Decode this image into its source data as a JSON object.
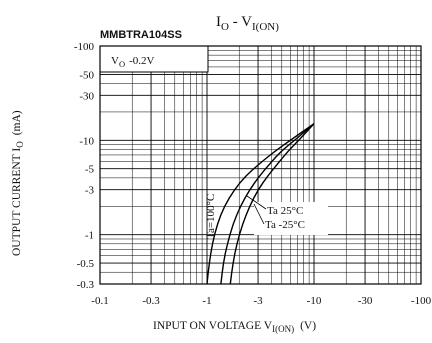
{
  "chart": {
    "part_number": "MMBTRA104SS",
    "title_main": "I",
    "title_sub1": "O",
    "title_mid": " - V",
    "title_sub2": "I(ON)",
    "condition_main": "V",
    "condition_sub": "O",
    "condition_value": "-0.2V",
    "ylabel_main": "OUTPUT CURRENT I",
    "ylabel_sub": "O",
    "ylabel_unit": "(mA)",
    "xlabel_main": "INPUT ON VOLTAGE V",
    "xlabel_sub": "I(ON)",
    "xlabel_unit": "(V)"
  },
  "chart_data": {
    "type": "line",
    "title": "I_O - V_I(ON)",
    "subtitle": "MMBTRA104SS",
    "xlabel": "INPUT ON VOLTAGE V_I(ON) (V)",
    "ylabel": "OUTPUT CURRENT I_O (mA)",
    "x_scale": "log",
    "y_scale": "log",
    "x_reversed_negative": true,
    "y_reversed_negative": true,
    "xlim": [
      -0.1,
      -100
    ],
    "ylim": [
      -0.3,
      -100
    ],
    "x_ticks": [
      -0.1,
      -0.3,
      -1,
      -3,
      -10,
      -30,
      -100
    ],
    "x_tick_labels": [
      "-0.1",
      "-0.3",
      "-1",
      "-3",
      "-10",
      "-30",
      "-100"
    ],
    "y_ticks": [
      -100,
      -50,
      -30,
      -10,
      -5,
      -3,
      -1,
      -0.5,
      -0.3
    ],
    "y_tick_labels": [
      "-100",
      "-50",
      "-30",
      "-10",
      "-5",
      "-3",
      "-1",
      "-0.5",
      "-0.3"
    ],
    "grid": true,
    "condition": "V_O -0.2V",
    "series": [
      {
        "name": "Ta=100°C",
        "x": [
          -1.0,
          -1.05,
          -1.12,
          -1.25,
          -1.45,
          -1.8,
          -2.3,
          -3.0,
          -4.2,
          -6.0,
          -10.0
        ],
        "y": [
          -0.3,
          -0.5,
          -0.8,
          -1.3,
          -2.0,
          -3.0,
          -4.2,
          -5.5,
          -7.5,
          -10.0,
          -15.0
        ]
      },
      {
        "name": "Ta 25°C",
        "x": [
          -1.35,
          -1.42,
          -1.55,
          -1.75,
          -2.05,
          -2.5,
          -3.1,
          -3.9,
          -5.0,
          -6.6,
          -10.0
        ],
        "y": [
          -0.3,
          -0.5,
          -0.8,
          -1.3,
          -2.0,
          -3.0,
          -4.2,
          -5.7,
          -7.8,
          -10.0,
          -15.0
        ]
      },
      {
        "name": "Ta -25°C",
        "x": [
          -1.65,
          -1.75,
          -1.9,
          -2.15,
          -2.5,
          -3.0,
          -3.7,
          -4.6,
          -5.8,
          -7.2,
          -10.0
        ],
        "y": [
          -0.3,
          -0.5,
          -0.8,
          -1.3,
          -2.0,
          -3.0,
          -4.2,
          -5.7,
          -7.8,
          -10.0,
          -15.0
        ]
      }
    ],
    "curve_labels": [
      "Ta=100°C",
      "Ta 25°C",
      "Ta -25°C"
    ]
  }
}
